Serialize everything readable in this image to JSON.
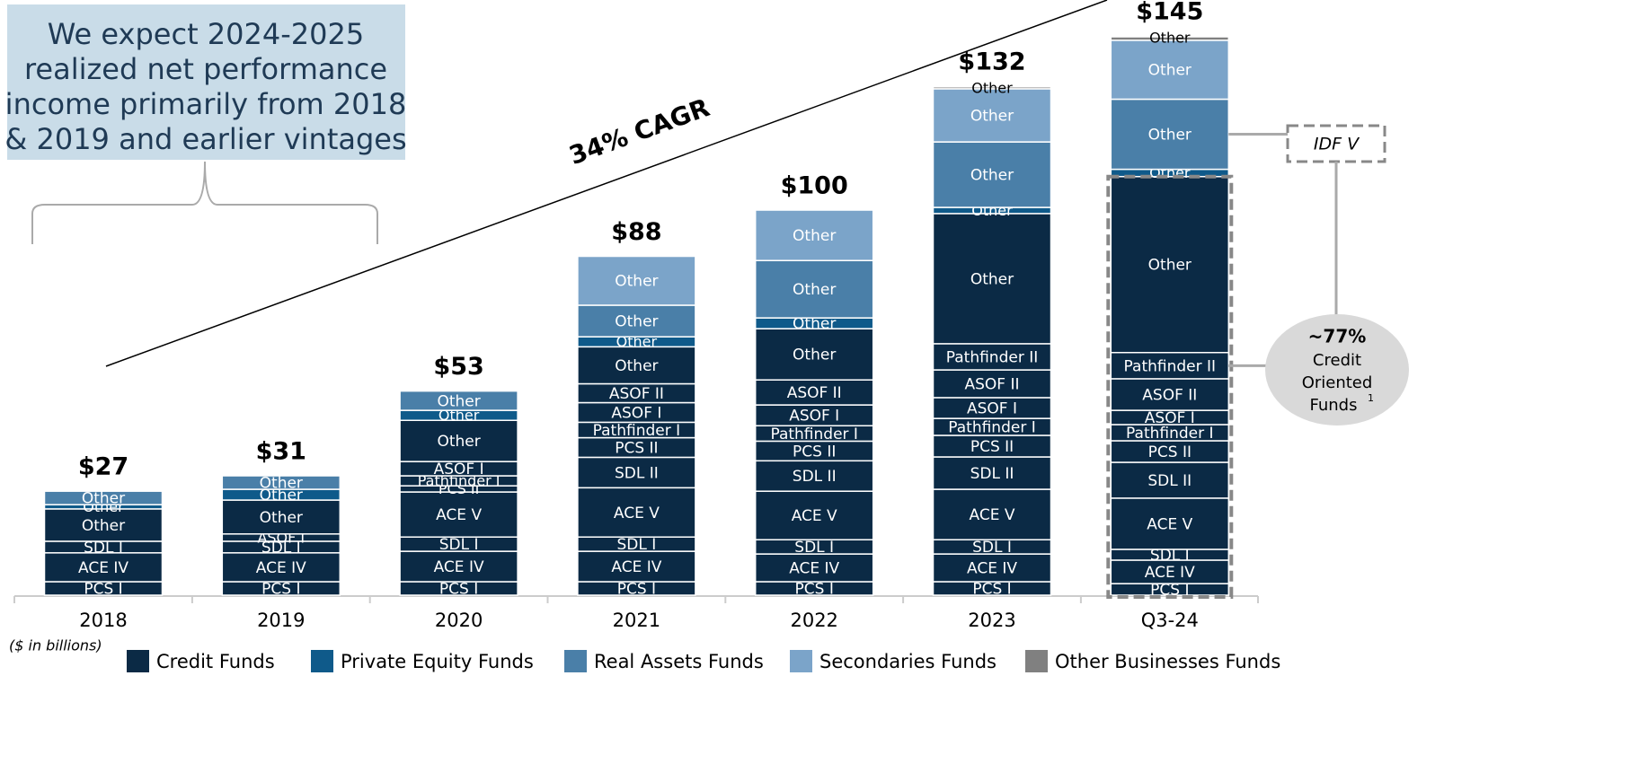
{
  "chart_data": {
    "type": "stacked_bar",
    "categories": [
      "2018",
      "2019",
      "2020",
      "2021",
      "2022",
      "2023",
      "Q3-24"
    ],
    "totals": [
      27,
      31,
      53,
      88,
      100,
      132,
      145
    ],
    "total_labels": [
      "$27",
      "$31",
      "$53",
      "$88",
      "$100",
      "$132",
      "$145"
    ],
    "groups": [
      {
        "name": "Credit Funds",
        "color": "#0b2a45"
      },
      {
        "name": "Private Equity Funds",
        "color": "#0f5a8a"
      },
      {
        "name": "Real Assets Funds",
        "color": "#4a7fa8"
      },
      {
        "name": "Secondaries Funds",
        "color": "#7ba4c9"
      },
      {
        "name": "Other Businesses Funds",
        "color": "#808080"
      }
    ],
    "bars": [
      [
        {
          "label": "PCS I",
          "group": 0,
          "value": 3.5
        },
        {
          "label": "ACE IV",
          "group": 0,
          "value": 7.5
        },
        {
          "label": "SDL I",
          "group": 0,
          "value": 3.0
        },
        {
          "label": "Other",
          "group": 0,
          "value": 8.4
        },
        {
          "label": "Other",
          "group": 1,
          "value": 1.1
        },
        {
          "label": "Other",
          "group": 2,
          "value": 3.5
        }
      ],
      [
        {
          "label": "PCS I",
          "group": 0,
          "value": 3.5
        },
        {
          "label": "ACE IV",
          "group": 0,
          "value": 7.5
        },
        {
          "label": "SDL I",
          "group": 0,
          "value": 3.0
        },
        {
          "label": "ASOF I",
          "group": 0,
          "value": 1.9
        },
        {
          "label": "Other",
          "group": 0,
          "value": 8.8
        },
        {
          "label": "Other",
          "group": 1,
          "value": 2.8
        },
        {
          "label": "Other",
          "group": 2,
          "value": 3.5
        }
      ],
      [
        {
          "label": "PCS I",
          "group": 0,
          "value": 3.5
        },
        {
          "label": "ACE IV",
          "group": 0,
          "value": 7.9
        },
        {
          "label": "SDL I",
          "group": 0,
          "value": 3.7
        },
        {
          "label": "ACE V",
          "group": 0,
          "value": 11.7
        },
        {
          "label": "PCS II",
          "group": 0,
          "value": 1.6
        },
        {
          "label": "Pathfinder I",
          "group": 0,
          "value": 2.6
        },
        {
          "label": "ASOF I",
          "group": 0,
          "value": 3.7
        },
        {
          "label": "Other",
          "group": 0,
          "value": 10.7
        },
        {
          "label": "Other",
          "group": 1,
          "value": 2.6
        },
        {
          "label": "Other",
          "group": 2,
          "value": 5.0
        }
      ],
      [
        {
          "label": "PCS I",
          "group": 0,
          "value": 3.5
        },
        {
          "label": "ACE IV",
          "group": 0,
          "value": 7.9
        },
        {
          "label": "SDL I",
          "group": 0,
          "value": 3.7
        },
        {
          "label": "ACE V",
          "group": 0,
          "value": 12.8
        },
        {
          "label": "SDL II",
          "group": 0,
          "value": 7.9
        },
        {
          "label": "PCS II",
          "group": 0,
          "value": 5.1
        },
        {
          "label": "Pathfinder I",
          "group": 0,
          "value": 4.0
        },
        {
          "label": "ASOF I",
          "group": 0,
          "value": 5.1
        },
        {
          "label": "ASOF II",
          "group": 0,
          "value": 4.9
        },
        {
          "label": "Other",
          "group": 0,
          "value": 9.6
        },
        {
          "label": "Other",
          "group": 1,
          "value": 2.6
        },
        {
          "label": "Other",
          "group": 2,
          "value": 8.2
        },
        {
          "label": "Other",
          "group": 3,
          "value": 12.7
        }
      ],
      [
        {
          "label": "PCS I",
          "group": 0,
          "value": 3.5
        },
        {
          "label": "ACE IV",
          "group": 0,
          "value": 7.2
        },
        {
          "label": "SDL I",
          "group": 0,
          "value": 3.7
        },
        {
          "label": "ACE V",
          "group": 0,
          "value": 12.6
        },
        {
          "label": "SDL II",
          "group": 0,
          "value": 7.9
        },
        {
          "label": "PCS II",
          "group": 0,
          "value": 5.1
        },
        {
          "label": "Pathfinder I",
          "group": 0,
          "value": 4.0
        },
        {
          "label": "ASOF I",
          "group": 0,
          "value": 5.4
        },
        {
          "label": "ASOF II",
          "group": 0,
          "value": 6.5
        },
        {
          "label": "Other",
          "group": 0,
          "value": 13.3
        },
        {
          "label": "Other",
          "group": 1,
          "value": 2.8
        },
        {
          "label": "Other",
          "group": 2,
          "value": 14.9
        },
        {
          "label": "Other",
          "group": 3,
          "value": 13.1
        }
      ],
      [
        {
          "label": "PCS I",
          "group": 0,
          "value": 3.5
        },
        {
          "label": "ACE IV",
          "group": 0,
          "value": 7.2
        },
        {
          "label": "SDL I",
          "group": 0,
          "value": 3.7
        },
        {
          "label": "ACE V",
          "group": 0,
          "value": 13.1
        },
        {
          "label": "SDL II",
          "group": 0,
          "value": 8.4
        },
        {
          "label": "PCS II",
          "group": 0,
          "value": 5.6
        },
        {
          "label": "Pathfinder I",
          "group": 0,
          "value": 4.4
        },
        {
          "label": "ASOF I",
          "group": 0,
          "value": 5.4
        },
        {
          "label": "ASOF II",
          "group": 0,
          "value": 7.2
        },
        {
          "label": "Pathfinder II",
          "group": 0,
          "value": 6.8
        },
        {
          "label": "Other",
          "group": 0,
          "value": 33.8
        },
        {
          "label": "Other",
          "group": 1,
          "value": 1.6
        },
        {
          "label": "Other",
          "group": 2,
          "value": 17.0
        },
        {
          "label": "Other",
          "group": 3,
          "value": 13.8
        },
        {
          "label": "Other",
          "group": 4,
          "value": 0.5
        }
      ],
      [
        {
          "label": "PCS I",
          "group": 0,
          "value": 3.0
        },
        {
          "label": "ACE IV",
          "group": 0,
          "value": 6.1
        },
        {
          "label": "SDL I",
          "group": 0,
          "value": 2.8
        },
        {
          "label": "ACE V",
          "group": 0,
          "value": 13.3
        },
        {
          "label": "SDL II",
          "group": 0,
          "value": 9.3
        },
        {
          "label": "PCS II",
          "group": 0,
          "value": 5.6
        },
        {
          "label": "Pathfinder I",
          "group": 0,
          "value": 4.2
        },
        {
          "label": "ASOF I",
          "group": 0,
          "value": 3.7
        },
        {
          "label": "ASOF II",
          "group": 0,
          "value": 8.2
        },
        {
          "label": "Pathfinder II",
          "group": 0,
          "value": 6.8
        },
        {
          "label": "Other",
          "group": 0,
          "value": 45.7
        },
        {
          "label": "Other",
          "group": 1,
          "value": 1.9
        },
        {
          "label": "Other",
          "group": 2,
          "value": 18.2
        },
        {
          "label": "Other",
          "group": 3,
          "value": 15.3
        },
        {
          "label": "Other",
          "group": 4,
          "value": 0.9
        }
      ]
    ]
  },
  "annotations": {
    "callout_lines": [
      "We expect 2024-2025",
      "realized net performance",
      "income primarily from 2018",
      "& 2019 and earlier vintages"
    ],
    "cagr": "34% CAGR",
    "idf": "IDF V",
    "share": "~77%",
    "share_lines": [
      "Credit",
      "Oriented",
      "Funds"
    ],
    "share_note": "1",
    "units": "($ in billions)"
  }
}
